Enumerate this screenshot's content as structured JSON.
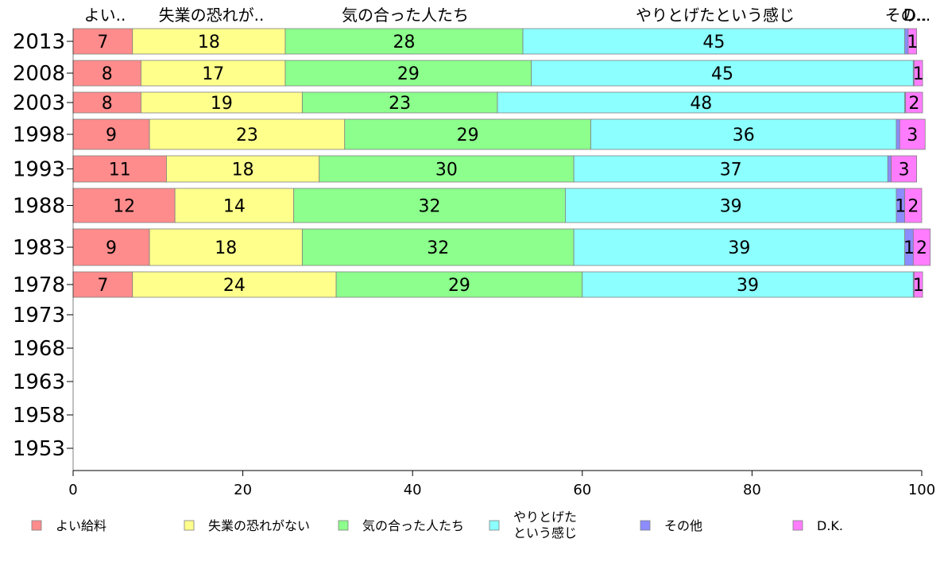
{
  "chart_data": {
    "type": "bar",
    "orientation": "horizontal",
    "stacked": true,
    "years": [
      "2013",
      "2008",
      "2003",
      "1998",
      "1993",
      "1988",
      "1983",
      "1978",
      "1973",
      "1968",
      "1963",
      "1958",
      "1953"
    ],
    "column_headers": [
      "よい..",
      "失業の恐れが..",
      "気の合った人たち",
      "やりとげたという感じ",
      "その..",
      "D..."
    ],
    "series": [
      {
        "name": "よい給料",
        "color": "#ff8c8c",
        "values": [
          7,
          8,
          8,
          9,
          11,
          12,
          9,
          7,
          null,
          null,
          null,
          null,
          null
        ]
      },
      {
        "name": "失業の恐れがない",
        "color": "#ffff8c",
        "values": [
          18,
          17,
          19,
          23,
          18,
          14,
          18,
          24,
          null,
          null,
          null,
          null,
          null
        ]
      },
      {
        "name": "気の合った人たち",
        "color": "#8cff8c",
        "values": [
          28,
          29,
          23,
          29,
          30,
          32,
          32,
          29,
          null,
          null,
          null,
          null,
          null
        ]
      },
      {
        "name": "やりとげた\nという感じ",
        "color": "#8cffff",
        "values": [
          45,
          45,
          48,
          36,
          37,
          39,
          39,
          39,
          null,
          null,
          null,
          null,
          null
        ]
      },
      {
        "name": "その他",
        "color": "#8c8cff",
        "values": [
          0.4,
          0.1,
          0.1,
          0.4,
          0.4,
          1,
          1,
          0.1,
          null,
          null,
          null,
          null,
          null
        ]
      },
      {
        "name": "D.K.",
        "color": "#ff7cff",
        "values": [
          1,
          1,
          2,
          3,
          3,
          2,
          2,
          1,
          null,
          null,
          null,
          null,
          null
        ]
      }
    ],
    "data_labels": [
      [
        "7",
        "18",
        "28",
        "45",
        "",
        "1"
      ],
      [
        "8",
        "17",
        "29",
        "45",
        "",
        "1"
      ],
      [
        "8",
        "19",
        "23",
        "48",
        "",
        "2"
      ],
      [
        "9",
        "23",
        "29",
        "36",
        "",
        "3"
      ],
      [
        "11",
        "18",
        "30",
        "37",
        "",
        "3"
      ],
      [
        "12",
        "14",
        "32",
        "39",
        "1",
        "2"
      ],
      [
        "9",
        "18",
        "32",
        "39",
        "1",
        "2"
      ],
      [
        "7",
        "24",
        "29",
        "39",
        "",
        "1"
      ]
    ],
    "xlim": [
      0,
      100
    ],
    "xticks": [
      "0",
      "20",
      "40",
      "60",
      "80",
      "100"
    ],
    "legend_position": "bottom",
    "grid": false
  }
}
